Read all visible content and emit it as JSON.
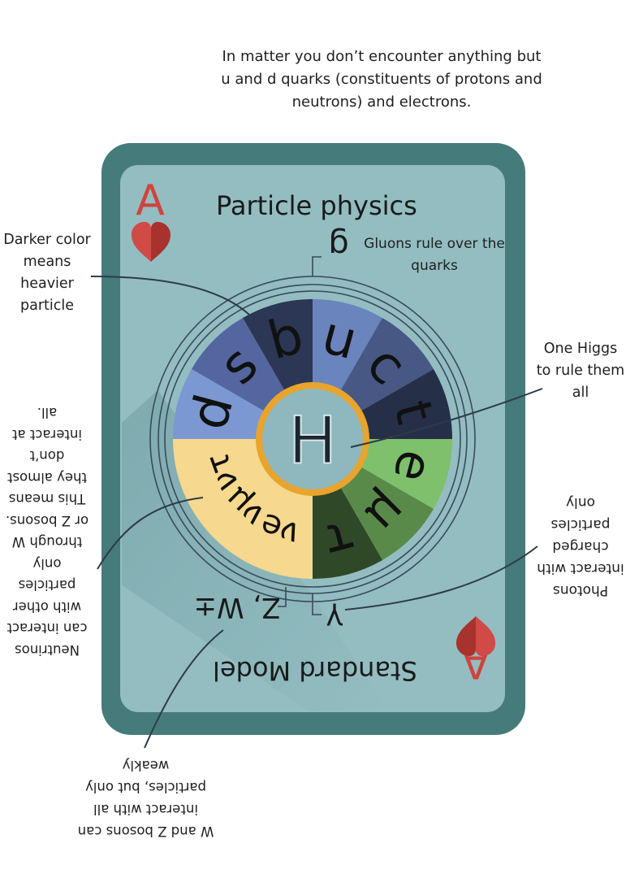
{
  "card": {
    "rank": "A",
    "suit_icon": "heart-icon",
    "title": "Particle physics",
    "bottom_title": "Standard Model",
    "colors": {
      "frame": "#457b7b",
      "face": "#93bdc1",
      "rank": "#d0433f",
      "heart_light": "#d24a45",
      "heart_dark": "#a8332e",
      "higgs_ring": "#e8a42c",
      "higgs_fill": "#8eb8bd"
    }
  },
  "particles": {
    "quarks_upper": [
      {
        "symbol": "d",
        "color": "#7b98d2"
      },
      {
        "symbol": "s",
        "color": "#5466a0"
      },
      {
        "symbol": "b",
        "color": "#2c3655"
      },
      {
        "symbol": "u",
        "color": "#6a84bd"
      },
      {
        "symbol": "c",
        "color": "#475885"
      },
      {
        "symbol": "t",
        "color": "#262f48"
      }
    ],
    "leptons": [
      {
        "symbol": "e",
        "color": "#7fc06c"
      },
      {
        "symbol": "μ",
        "color": "#5a8a4a"
      },
      {
        "symbol": "τ",
        "color": "#2f4828"
      }
    ],
    "neutrinos": {
      "symbols": [
        "νe",
        "νμ",
        "ντ"
      ],
      "color": "#f6d88e"
    },
    "higgs": "H",
    "gluon": "g",
    "photon": "γ",
    "weak_bosons": "Z, W±"
  },
  "annotations": {
    "top": "In matter you don’t encounter anything but u and d quarks (constituents of protons and neutrons) and electrons.",
    "darker": "Darker color means heavier particle",
    "gluons": "Gluons rule over the quarks",
    "higgs": "One Higgs to rule them all",
    "neutrinos": "Neutrinos can interact with other particles only through W or Z bosons. This means they almost don’t interact at all.",
    "photons": "Photons interact with charged particles only",
    "wz": "W and Z bosons can interact with all particles, but only weakly"
  }
}
